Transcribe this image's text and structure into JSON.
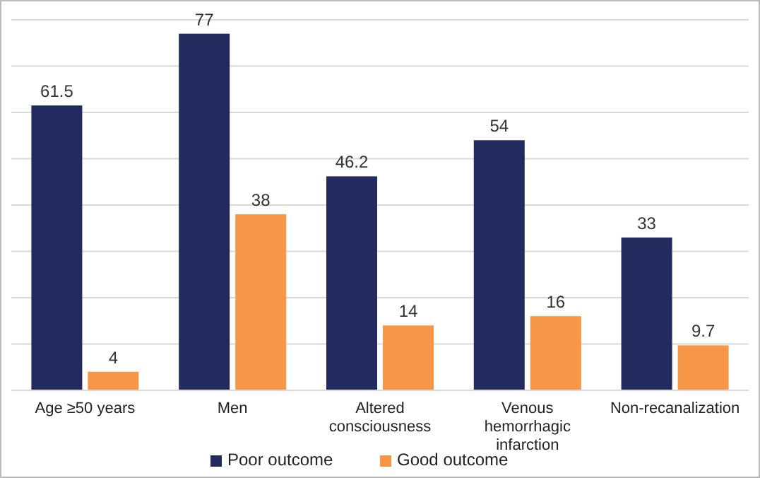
{
  "chart_data": {
    "type": "bar",
    "categories": [
      "Age ≥50 years",
      "Men",
      "Altered consciousness",
      "Venous hemorrhagic infarction",
      "Non-recanalization"
    ],
    "series": [
      {
        "name": "Poor outcome",
        "color": "#222a5e",
        "values": [
          61.5,
          77,
          46.2,
          54,
          33
        ]
      },
      {
        "name": "Good outcome",
        "color": "#f79646",
        "values": [
          4,
          38,
          14,
          16,
          9.7
        ]
      }
    ],
    "ylim": [
      0,
      80
    ],
    "yticks": [
      {
        "value": 0,
        "label": null
      },
      {
        "value": 10,
        "label": null
      },
      {
        "value": 20,
        "label": null
      },
      {
        "value": 30,
        "label": null
      },
      {
        "value": 40,
        "label": null
      },
      {
        "value": 50,
        "label": null
      },
      {
        "value": 60,
        "label": null
      },
      {
        "value": 70,
        "label": null
      },
      {
        "value": 80,
        "label": null
      }
    ],
    "tick_labels": "x",
    "grid": "y",
    "data_labels": true,
    "legend": "bottom"
  }
}
